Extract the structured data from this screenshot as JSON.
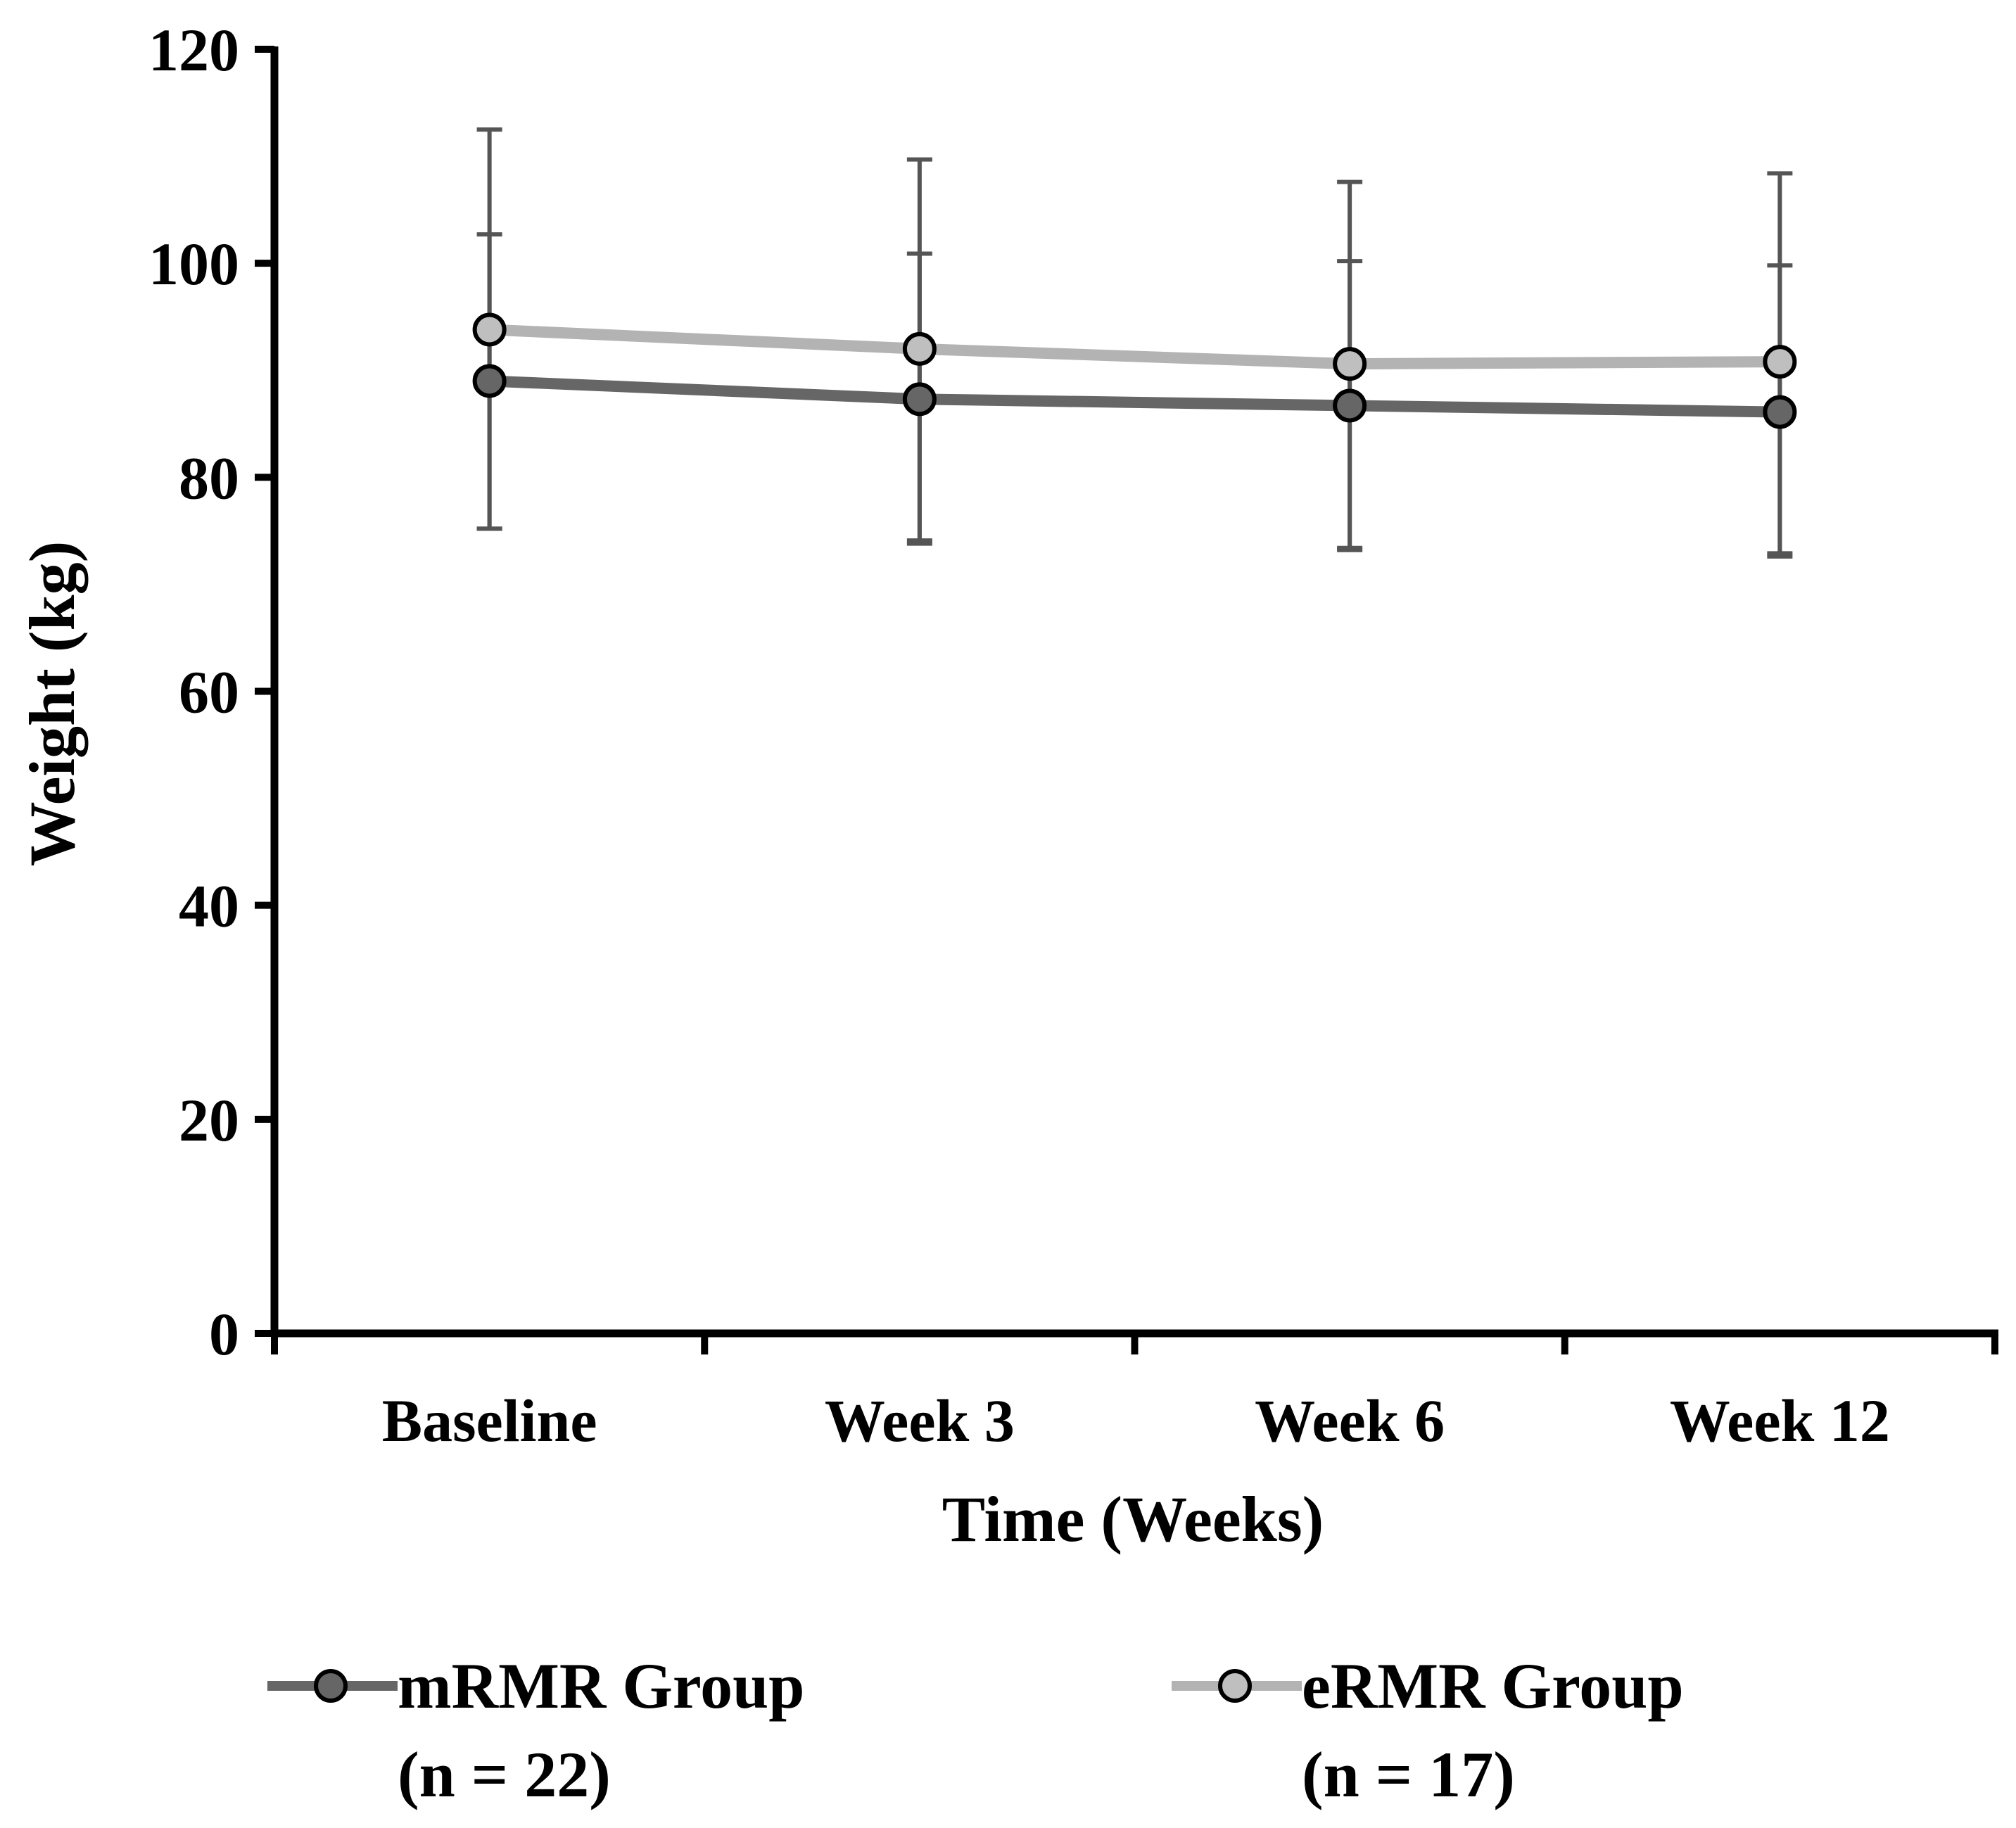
{
  "chart_data": {
    "type": "line",
    "xlabel": "Time (Weeks)",
    "ylabel": "Weight (kg)",
    "ylim": [
      0,
      120
    ],
    "yticks": [
      0,
      20,
      40,
      60,
      80,
      100,
      120
    ],
    "categories": [
      "Baseline",
      "Week 3",
      "Week 6",
      "Week 12"
    ],
    "series": [
      {
        "name": "mRMR Group",
        "n_label": "(n = 22)",
        "color": "#666666",
        "marker_color": "#666666",
        "values": [
          89.0,
          87.3,
          86.7,
          86.1
        ],
        "error_lower": [
          75.2,
          74.1,
          73.2,
          72.6
        ],
        "error_upper": [
          102.7,
          100.9,
          100.2,
          99.8
        ]
      },
      {
        "name": "eRMR Group",
        "n_label": "(n = 17)",
        "color": "#b3b3b3",
        "marker_color": "#bfbfbf",
        "values": [
          93.8,
          92.0,
          90.6,
          90.8
        ],
        "error_lower": [
          75.2,
          73.8,
          73.4,
          72.9
        ],
        "error_upper": [
          112.5,
          109.7,
          107.6,
          108.4
        ]
      }
    ],
    "legend": "bottom",
    "grid": false
  }
}
